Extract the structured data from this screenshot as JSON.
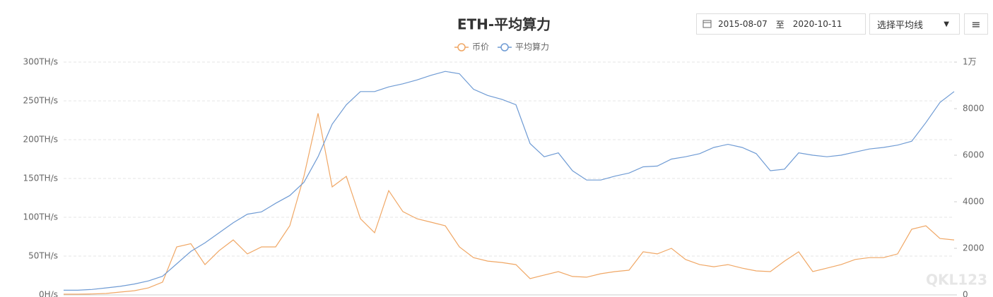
{
  "chart_data": {
    "type": "line",
    "title": "ETH-平均算力",
    "series": [
      {
        "name": "币价",
        "color": "#f0a765",
        "axis": "y2",
        "values": [
          30,
          30,
          40,
          60,
          120,
          180,
          300,
          550,
          2060,
          2200,
          1300,
          1900,
          2360,
          1760,
          2060,
          2060,
          2970,
          5090,
          7800,
          4640,
          5090,
          3270,
          2670,
          4480,
          3580,
          3270,
          3120,
          2970,
          2060,
          1600,
          1450,
          1390,
          1300,
          700,
          850,
          1000,
          790,
          760,
          910,
          1000,
          1060,
          1850,
          1760,
          2000,
          1520,
          1300,
          1210,
          1300,
          1150,
          1030,
          1000,
          1450,
          1850,
          1000,
          1150,
          1300,
          1520,
          1600,
          1600,
          1760,
          2820,
          2970,
          2420,
          2360
        ]
      },
      {
        "name": "平均算力",
        "color": "#6f9bd4",
        "values": [
          6,
          6,
          7,
          9,
          11,
          14,
          18,
          24,
          40,
          56,
          67,
          80,
          93,
          104,
          107,
          118,
          128,
          145,
          178,
          220,
          245,
          262,
          262,
          268,
          272,
          277,
          283,
          288,
          285,
          265,
          257,
          252,
          245,
          195,
          178,
          183,
          160,
          148,
          148,
          153,
          157,
          165,
          166,
          175,
          178,
          182,
          190,
          194,
          190,
          182,
          160,
          162,
          183,
          180,
          178,
          180,
          184,
          188,
          190,
          193,
          198,
          222,
          248,
          262
        ]
      }
    ],
    "ylim": [
      0,
      300
    ],
    "yticks": [
      {
        "value": 0,
        "label": "0H/s"
      },
      {
        "value": 50,
        "label": "50TH/s"
      },
      {
        "value": 100,
        "label": "100TH/s"
      },
      {
        "value": 150,
        "label": "150TH/s"
      },
      {
        "value": 200,
        "label": "200TH/s"
      },
      {
        "value": 250,
        "label": "250TH/s"
      },
      {
        "value": 300,
        "label": "300TH/s"
      }
    ],
    "y2lim": [
      0,
      10000
    ],
    "y2ticks": [
      0,
      2000,
      4000,
      6000,
      8000,
      {
        "value": 10000,
        "label": "1万"
      }
    ],
    "grid": true
  },
  "controls": {
    "start_date": "2015-08-07",
    "separator": "至",
    "end_date": "2020-10-11",
    "select": "选择平均线"
  },
  "watermark": "QKL123"
}
